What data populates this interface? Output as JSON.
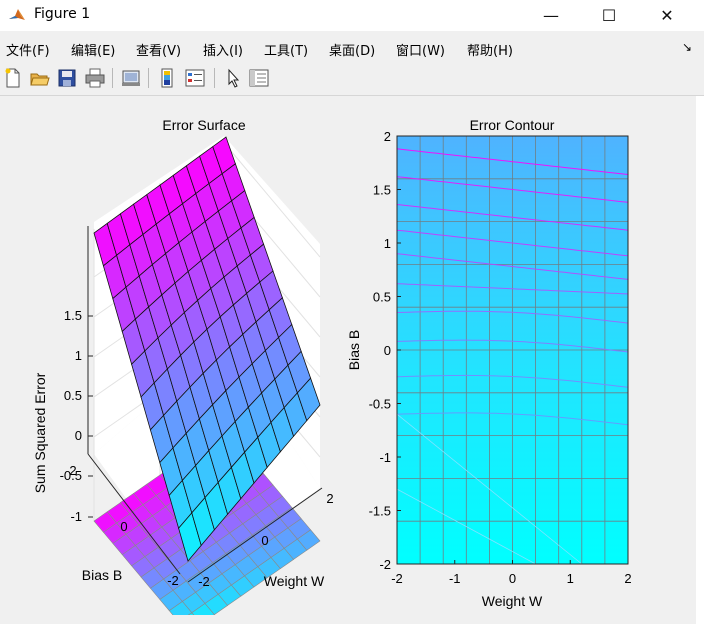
{
  "window": {
    "title": "Figure 1",
    "minimize": "—",
    "maximize": "☐",
    "close": "✕"
  },
  "menu": [
    {
      "label": "文件(F)",
      "key": "file"
    },
    {
      "label": "编辑(E)",
      "key": "edit"
    },
    {
      "label": "查看(V)",
      "key": "view"
    },
    {
      "label": "插入(I)",
      "key": "insert"
    },
    {
      "label": "工具(T)",
      "key": "tools"
    },
    {
      "label": "桌面(D)",
      "key": "desktop"
    },
    {
      "label": "窗口(W)",
      "key": "window"
    },
    {
      "label": "帮助(H)",
      "key": "help"
    }
  ],
  "toolbar_icons": [
    "new-figure-icon",
    "open-file-icon",
    "save-icon",
    "print-icon",
    "link-plot-icon",
    "insert-colorbar-icon",
    "insert-legend-icon",
    "edit-plot-arrow-icon",
    "property-inspector-icon"
  ],
  "colors": {
    "colormap_low": "#00ffff",
    "colormap_high": "#ff00ff",
    "grid": "#7a7a7a"
  },
  "chart_data": [
    {
      "type": "surface",
      "title": "Error Surface",
      "xlabel": "Weight W",
      "ylabel": "Bias B",
      "zlabel": "Sum Squared Error",
      "x_ticks": [
        "-2",
        "0",
        "2"
      ],
      "y_ticks": [
        "-2",
        "0",
        "2"
      ],
      "z_ticks": [
        "-1",
        "-0.5",
        "0",
        "0.5",
        "1",
        "1.5"
      ],
      "xlim": [
        -2,
        2
      ],
      "ylim": [
        -2,
        2
      ],
      "zlim": [
        -1.2,
        1.6
      ],
      "grid_size": [
        11,
        11
      ],
      "z_corners": {
        "W-2_B2": 1.55,
        "W2_B2": 1.6,
        "W-2_B-2": -1.15,
        "W2_B-2": -0.35
      },
      "colormap": "cool",
      "projection_on_floor": true
    },
    {
      "type": "contour",
      "title": "Error Contour",
      "xlabel": "Weight W",
      "ylabel": "Bias B",
      "x_ticks": [
        "-2",
        "-1",
        "0",
        "1",
        "2"
      ],
      "y_ticks": [
        "-2",
        "-1.5",
        "-1",
        "-0.5",
        "0",
        "0.5",
        "1",
        "1.5",
        "2"
      ],
      "xlim": [
        -2,
        2
      ],
      "ylim": [
        -2,
        2
      ],
      "grid": true,
      "colormap": "cool"
    }
  ]
}
